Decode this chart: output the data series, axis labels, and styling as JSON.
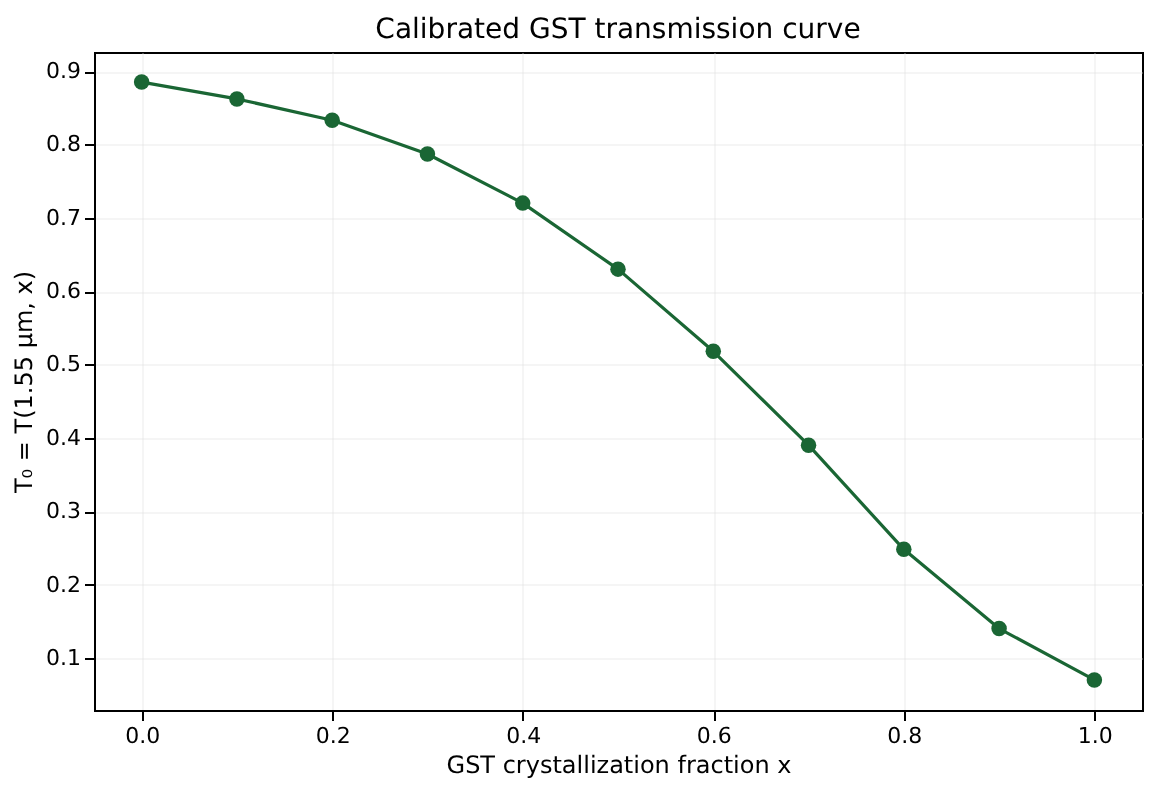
{
  "chart_data": {
    "type": "line",
    "title": "Calibrated GST transmission curve",
    "xlabel": "GST crystallization fraction x",
    "ylabel": "T₀ = T(1.55 μm, x)",
    "x": [
      0.0,
      0.1,
      0.2,
      0.3,
      0.4,
      0.5,
      0.6,
      0.7,
      0.8,
      0.9,
      1.0
    ],
    "series": [
      {
        "color": "#1a6634",
        "values": [
          0.885,
          0.862,
          0.833,
          0.787,
          0.72,
          0.63,
          0.518,
          0.39,
          0.248,
          0.14,
          0.07
        ]
      }
    ],
    "xlim": [
      -0.05,
      1.05
    ],
    "xticks": [
      {
        "value": 0,
        "label": "0.0"
      },
      0.2,
      0.4,
      0.6,
      0.8,
      {
        "value": 1,
        "label": "1.0"
      }
    ],
    "ylim": [
      0.029,
      0.926
    ],
    "yticks": [
      0.1,
      0.2,
      0.3,
      0.4,
      0.5,
      0.6,
      0.7,
      0.8,
      0.9
    ],
    "grid": true,
    "marker": "circle",
    "line_style": "solid",
    "legend": false
  }
}
